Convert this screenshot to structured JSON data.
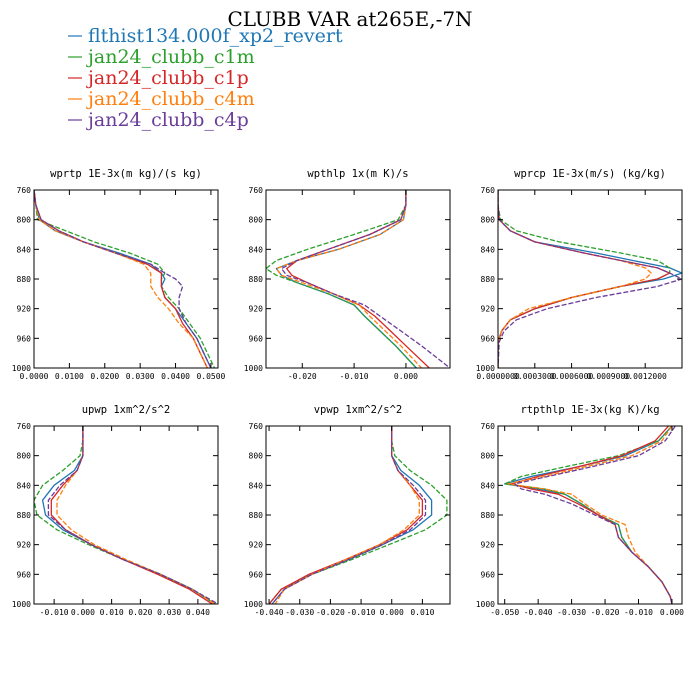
{
  "title": "CLUBB VAR at265E,-7N",
  "series_styles": [
    {
      "name": "flthist134.000f_xp2_revert",
      "color": "#1f77b4",
      "dash": ""
    },
    {
      "name": "jan24_clubb_c1m",
      "color": "#2ca02c",
      "dash": "5,2"
    },
    {
      "name": "jan24_clubb_c1p",
      "color": "#d62728",
      "dash": ""
    },
    {
      "name": "jan24_clubb_c4m",
      "color": "#ff7f0e",
      "dash": "5,2"
    },
    {
      "name": "jan24_clubb_c4p",
      "color": "#6a3d9a",
      "dash": "5,2"
    }
  ],
  "chart_data": [
    {
      "type": "line",
      "title": "wprtp  1E-3x(m kg)/(s kg)",
      "ylim": [
        760,
        1000
      ],
      "yticks": [
        760,
        800,
        840,
        880,
        920,
        960,
        1000
      ],
      "xlim": [
        0.0,
        0.052
      ],
      "xticks": [
        0.0,
        0.01,
        0.02,
        0.03,
        0.04,
        0.05
      ],
      "xtick_labels": [
        "0.0000",
        "0.0100",
        "0.0200",
        "0.0300",
        "0.0400",
        "0.0500"
      ],
      "y": [
        760,
        780,
        800,
        815,
        830,
        845,
        860,
        872,
        880,
        890,
        905,
        920,
        940,
        960,
        980,
        1000
      ],
      "series": [
        {
          "name": "flthist134.000f_xp2_revert",
          "values": [
            0.0,
            0.0005,
            0.0015,
            0.006,
            0.014,
            0.024,
            0.033,
            0.036,
            0.037,
            0.036,
            0.037,
            0.04,
            0.043,
            0.046,
            0.048,
            0.05
          ]
        },
        {
          "name": "jan24_clubb_c1m",
          "values": [
            0.0,
            0.0005,
            0.001,
            0.009,
            0.017,
            0.027,
            0.035,
            0.037,
            0.036,
            0.036,
            0.038,
            0.041,
            0.044,
            0.047,
            0.049,
            0.051
          ]
        },
        {
          "name": "jan24_clubb_c1p",
          "values": [
            0.0,
            0.0005,
            0.002,
            0.007,
            0.014,
            0.023,
            0.032,
            0.036,
            0.036,
            0.036,
            0.037,
            0.04,
            0.042,
            0.045,
            0.047,
            0.049
          ]
        },
        {
          "name": "jan24_clubb_c4m",
          "values": [
            0.0,
            0.0005,
            0.0015,
            0.006,
            0.014,
            0.023,
            0.031,
            0.033,
            0.033,
            0.033,
            0.035,
            0.038,
            0.041,
            0.045,
            0.047,
            0.049
          ]
        },
        {
          "name": "jan24_clubb_c4p",
          "values": [
            0.0,
            0.0005,
            0.002,
            0.007,
            0.014,
            0.023,
            0.033,
            0.037,
            0.04,
            0.042,
            0.041,
            0.041,
            0.043,
            0.046,
            0.048,
            0.05
          ]
        }
      ]
    },
    {
      "type": "line",
      "title": "wpthlp  1x(m K)/s",
      "ylim": [
        760,
        1000
      ],
      "yticks": [
        760,
        800,
        840,
        880,
        920,
        960,
        1000
      ],
      "xlim": [
        -0.027,
        0.0085
      ],
      "xticks": [
        -0.02,
        -0.01,
        0.0
      ],
      "xtick_labels": [
        "-0.020",
        "-0.010",
        "0.000"
      ],
      "y": [
        760,
        780,
        800,
        820,
        840,
        855,
        866,
        875,
        885,
        900,
        915,
        930,
        950,
        970,
        1000
      ],
      "series": [
        {
          "name": "flthist134.000f_xp2_revert",
          "values": [
            0.0,
            0.0,
            -0.0005,
            -0.005,
            -0.013,
            -0.021,
            -0.025,
            -0.024,
            -0.021,
            -0.015,
            -0.01,
            -0.008,
            -0.005,
            -0.002,
            0.002
          ]
        },
        {
          "name": "jan24_clubb_c1m",
          "values": [
            0.0,
            0.0,
            -0.0015,
            -0.01,
            -0.019,
            -0.025,
            -0.027,
            -0.025,
            -0.021,
            -0.015,
            -0.01,
            -0.008,
            -0.005,
            -0.002,
            0.002
          ]
        },
        {
          "name": "jan24_clubb_c1p",
          "values": [
            0.0,
            0.0,
            -0.001,
            -0.007,
            -0.015,
            -0.021,
            -0.023,
            -0.022,
            -0.019,
            -0.014,
            -0.009,
            -0.006,
            -0.003,
            0.0,
            0.0045
          ]
        },
        {
          "name": "jan24_clubb_c4m",
          "values": [
            0.0,
            0.0,
            -0.0005,
            -0.005,
            -0.013,
            -0.021,
            -0.025,
            -0.024,
            -0.02,
            -0.014,
            -0.009,
            -0.007,
            -0.004,
            -0.001,
            0.003
          ]
        },
        {
          "name": "jan24_clubb_c4p",
          "values": [
            0.0,
            0.0,
            -0.001,
            -0.007,
            -0.015,
            -0.021,
            -0.024,
            -0.023,
            -0.019,
            -0.014,
            -0.008,
            -0.005,
            -0.001,
            0.003,
            0.0085
          ]
        }
      ]
    },
    {
      "type": "line",
      "title": "wprcp  1E-3x(m/s) (kg/kg)",
      "ylim": [
        760,
        1000
      ],
      "yticks": [
        760,
        800,
        840,
        880,
        920,
        960,
        1000
      ],
      "xlim": [
        0.0,
        0.0015
      ],
      "xticks": [
        0.0,
        0.0003,
        0.0006,
        0.0009,
        0.0012
      ],
      "xtick_labels": [
        "0.0000000",
        "0.0003000",
        "0.0006000",
        "0.0009000",
        "0.0012000"
      ],
      "y": [
        760,
        780,
        800,
        815,
        830,
        845,
        855,
        865,
        872,
        880,
        890,
        905,
        920,
        935,
        950,
        965,
        1000
      ],
      "series": [
        {
          "name": "flthist134.000f_xp2_revert",
          "values": [
            0.0,
            0.0,
            1e-05,
            0.0001,
            0.0003,
            0.0008,
            0.0011,
            0.0014,
            0.0015,
            0.00135,
            0.001,
            0.0006,
            0.0003,
            0.0001,
            3e-05,
            0.0,
            0.0
          ]
        },
        {
          "name": "jan24_clubb_c1m",
          "values": [
            0.0,
            0.0,
            2e-05,
            0.00015,
            0.0005,
            0.001,
            0.0013,
            0.0014,
            0.0014,
            0.0013,
            0.001,
            0.0006,
            0.0003,
            0.0001,
            3e-05,
            0.0,
            0.0
          ]
        },
        {
          "name": "jan24_clubb_c1p",
          "values": [
            0.0,
            0.0,
            1e-05,
            0.0001,
            0.0003,
            0.0007,
            0.001,
            0.0013,
            0.0014,
            0.0013,
            0.001,
            0.0006,
            0.0003,
            0.0001,
            3e-05,
            0.0,
            0.0
          ]
        },
        {
          "name": "jan24_clubb_c4m",
          "values": [
            0.0,
            0.0,
            1e-05,
            0.0001,
            0.0003,
            0.0007,
            0.001,
            0.0012,
            0.00125,
            0.0012,
            0.001,
            0.0006,
            0.00025,
            0.0001,
            3e-05,
            0.0,
            0.0
          ]
        },
        {
          "name": "jan24_clubb_c4p",
          "values": [
            0.0,
            0.0,
            1e-05,
            0.0001,
            0.0003,
            0.0007,
            0.001,
            0.0013,
            0.0014,
            0.0015,
            0.0013,
            0.0008,
            0.0004,
            0.00015,
            5e-05,
            1e-05,
            0.0
          ]
        }
      ]
    },
    {
      "type": "line",
      "title": "upwp  1xm^2/s^2",
      "ylim": [
        760,
        1000
      ],
      "yticks": [
        760,
        800,
        840,
        880,
        920,
        960,
        1000
      ],
      "xlim": [
        -0.017,
        0.047
      ],
      "xticks": [
        -0.01,
        0.0,
        0.01,
        0.02,
        0.03,
        0.04
      ],
      "xtick_labels": [
        "-0.010",
        "0.000",
        "0.010",
        "0.020",
        "0.030",
        "0.040"
      ],
      "y": [
        760,
        780,
        800,
        820,
        840,
        860,
        880,
        900,
        920,
        940,
        960,
        980,
        1000
      ],
      "series": [
        {
          "name": "flthist134.000f_xp2_revert",
          "values": [
            0.0,
            0.0,
            0.0,
            -0.003,
            -0.01,
            -0.014,
            -0.013,
            -0.007,
            0.003,
            0.014,
            0.027,
            0.038,
            0.046
          ]
        },
        {
          "name": "jan24_clubb_c1m",
          "values": [
            0.0,
            0.0,
            -0.001,
            -0.007,
            -0.014,
            -0.017,
            -0.016,
            -0.009,
            0.002,
            0.014,
            0.027,
            0.038,
            0.046
          ]
        },
        {
          "name": "jan24_clubb_c1p",
          "values": [
            0.0,
            0.0,
            0.0,
            -0.002,
            -0.007,
            -0.011,
            -0.011,
            -0.006,
            0.003,
            0.014,
            0.026,
            0.037,
            0.045
          ]
        },
        {
          "name": "jan24_clubb_c4m",
          "values": [
            0.0,
            0.0,
            0.0,
            -0.002,
            -0.006,
            -0.009,
            -0.009,
            -0.004,
            0.004,
            0.015,
            0.027,
            0.038,
            0.046
          ]
        },
        {
          "name": "jan24_clubb_c4p",
          "values": [
            0.0,
            0.0,
            0.0,
            -0.002,
            -0.008,
            -0.012,
            -0.012,
            -0.006,
            0.003,
            0.014,
            0.027,
            0.038,
            0.047
          ]
        }
      ]
    },
    {
      "type": "line",
      "title": "vpwp  1xm^2/s^2",
      "ylim": [
        760,
        1000
      ],
      "yticks": [
        760,
        800,
        840,
        880,
        920,
        960,
        1000
      ],
      "xlim": [
        -0.041,
        0.019
      ],
      "xticks": [
        -0.04,
        -0.03,
        -0.02,
        -0.01,
        0.0,
        0.01
      ],
      "xtick_labels": [
        "-0.040",
        "-0.030",
        "-0.020",
        "-0.010",
        "0.000",
        "0.010"
      ],
      "y": [
        760,
        780,
        800,
        820,
        840,
        860,
        880,
        900,
        920,
        940,
        960,
        980,
        1000
      ],
      "series": [
        {
          "name": "flthist134.000f_xp2_revert",
          "values": [
            0.0,
            0.0,
            0.0,
            0.003,
            0.009,
            0.013,
            0.013,
            0.007,
            -0.003,
            -0.014,
            -0.026,
            -0.035,
            -0.039
          ]
        },
        {
          "name": "jan24_clubb_c1m",
          "values": [
            0.0,
            0.0,
            0.001,
            0.006,
            0.013,
            0.018,
            0.018,
            0.011,
            -0.001,
            -0.013,
            -0.026,
            -0.036,
            -0.04
          ]
        },
        {
          "name": "jan24_clubb_c1p",
          "values": [
            0.0,
            0.0,
            0.0,
            0.002,
            0.006,
            0.01,
            0.01,
            0.005,
            -0.004,
            -0.015,
            -0.027,
            -0.036,
            -0.04
          ]
        },
        {
          "name": "jan24_clubb_c4m",
          "values": [
            0.0,
            0.0,
            0.0,
            0.002,
            0.006,
            0.009,
            0.009,
            0.004,
            -0.004,
            -0.015,
            -0.026,
            -0.035,
            -0.038
          ]
        },
        {
          "name": "jan24_clubb_c4p",
          "values": [
            0.0,
            0.0,
            0.0,
            0.002,
            0.007,
            0.011,
            0.011,
            0.006,
            -0.003,
            -0.014,
            -0.026,
            -0.035,
            -0.039
          ]
        }
      ]
    },
    {
      "type": "line",
      "title": "rtpthlp  1E-3x(kg K)/kg",
      "ylim": [
        760,
        1000
      ],
      "yticks": [
        760,
        800,
        840,
        880,
        920,
        960,
        1000
      ],
      "xlim": [
        -0.052,
        0.003
      ],
      "xticks": [
        -0.05,
        -0.04,
        -0.03,
        -0.02,
        -0.01,
        0.0
      ],
      "xtick_labels": [
        "-0.050",
        "-0.040",
        "-0.030",
        "-0.020",
        "-0.010",
        "0.000"
      ],
      "y": [
        760,
        780,
        800,
        815,
        828,
        838,
        845,
        852,
        865,
        880,
        893,
        910,
        930,
        950,
        970,
        990,
        1000
      ],
      "series": [
        {
          "name": "flthist134.000f_xp2_revert",
          "values": [
            0.0,
            -0.004,
            -0.014,
            -0.028,
            -0.042,
            -0.05,
            -0.04,
            -0.032,
            -0.027,
            -0.022,
            -0.016,
            -0.015,
            -0.012,
            -0.007,
            -0.003,
            -0.0005,
            0.0
          ]
        },
        {
          "name": "jan24_clubb_c1m",
          "values": [
            0.0,
            -0.004,
            -0.016,
            -0.032,
            -0.045,
            -0.05,
            -0.038,
            -0.032,
            -0.027,
            -0.022,
            -0.016,
            -0.015,
            -0.012,
            -0.007,
            -0.003,
            -0.0005,
            0.0
          ]
        },
        {
          "name": "jan24_clubb_c1p",
          "values": [
            -0.001,
            -0.005,
            -0.015,
            -0.028,
            -0.04,
            -0.048,
            -0.042,
            -0.034,
            -0.028,
            -0.022,
            -0.017,
            -0.016,
            -0.012,
            -0.007,
            -0.003,
            -0.0005,
            0.0
          ]
        },
        {
          "name": "jan24_clubb_c4m",
          "values": [
            0.0,
            -0.003,
            -0.012,
            -0.026,
            -0.038,
            -0.049,
            -0.038,
            -0.03,
            -0.026,
            -0.021,
            -0.014,
            -0.013,
            -0.011,
            -0.007,
            -0.003,
            -0.0005,
            0.0
          ]
        },
        {
          "name": "jan24_clubb_c4p",
          "values": [
            0.001,
            -0.002,
            -0.01,
            -0.024,
            -0.037,
            -0.047,
            -0.045,
            -0.038,
            -0.03,
            -0.023,
            -0.017,
            -0.016,
            -0.012,
            -0.007,
            -0.003,
            -0.0005,
            0.0
          ]
        }
      ]
    }
  ]
}
